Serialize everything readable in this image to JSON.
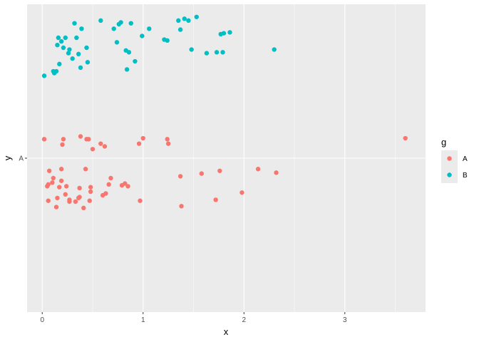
{
  "chart_data": {
    "type": "scatter",
    "xlabel": "x",
    "ylabel": "y",
    "xlim": [
      -0.15,
      3.8
    ],
    "x_ticks": [
      "0",
      "1",
      "2",
      "3"
    ],
    "x_tick_values": [
      0,
      1,
      2,
      3
    ],
    "y_categories": [
      "A"
    ],
    "grid": true,
    "panel_background": "#EBEBEB",
    "grid_color": "#FFFFFF",
    "legend": {
      "title": "g",
      "position": "right"
    },
    "series": [
      {
        "name": "A",
        "color": "#F8766D",
        "points": [
          [
            0.02,
            0.21
          ],
          [
            0.05,
            -0.31
          ],
          [
            0.06,
            -0.29
          ],
          [
            0.06,
            -0.47
          ],
          [
            0.07,
            -0.14
          ],
          [
            0.1,
            -0.27
          ],
          [
            0.11,
            -0.22
          ],
          [
            0.14,
            -0.54
          ],
          [
            0.15,
            -0.44
          ],
          [
            0.17,
            -0.32
          ],
          [
            0.19,
            -0.25
          ],
          [
            0.19,
            -0.12
          ],
          [
            0.2,
            0.15
          ],
          [
            0.21,
            0.21
          ],
          [
            0.23,
            -0.4
          ],
          [
            0.24,
            -0.31
          ],
          [
            0.27,
            -0.46
          ],
          [
            0.27,
            -0.48
          ],
          [
            0.33,
            -0.48
          ],
          [
            0.36,
            -0.44
          ],
          [
            0.37,
            -0.43
          ],
          [
            0.37,
            -0.33
          ],
          [
            0.38,
            0.24
          ],
          [
            0.41,
            -0.55
          ],
          [
            0.43,
            -0.12
          ],
          [
            0.44,
            0.21
          ],
          [
            0.46,
            0.21
          ],
          [
            0.47,
            -0.47
          ],
          [
            0.48,
            -0.32
          ],
          [
            0.48,
            -0.37
          ],
          [
            0.5,
            0.1
          ],
          [
            0.58,
            0.16
          ],
          [
            0.6,
            -0.41
          ],
          [
            0.62,
            0.13
          ],
          [
            0.63,
            -0.39
          ],
          [
            0.66,
            -0.29
          ],
          [
            0.68,
            -0.22
          ],
          [
            0.79,
            -0.3
          ],
          [
            0.82,
            -0.28
          ],
          [
            0.85,
            -0.31
          ],
          [
            0.96,
            0.16
          ],
          [
            0.97,
            -0.47
          ],
          [
            1.0,
            0.22
          ],
          [
            1.24,
            0.21
          ],
          [
            1.25,
            0.16
          ],
          [
            1.37,
            -0.2
          ],
          [
            1.38,
            -0.53
          ],
          [
            1.58,
            -0.17
          ],
          [
            1.72,
            -0.46
          ],
          [
            1.76,
            -0.14
          ],
          [
            1.98,
            -0.38
          ],
          [
            2.14,
            -0.12
          ],
          [
            2.32,
            -0.16
          ],
          [
            3.6,
            0.22
          ]
        ]
      },
      {
        "name": "B",
        "color": "#00BFC4",
        "points": [
          [
            0.02,
            0.91
          ],
          [
            0.11,
            0.96
          ],
          [
            0.12,
            0.94
          ],
          [
            0.14,
            0.96
          ],
          [
            0.15,
            1.25
          ],
          [
            0.16,
            1.33
          ],
          [
            0.17,
            1.04
          ],
          [
            0.19,
            1.29
          ],
          [
            0.21,
            1.22
          ],
          [
            0.23,
            1.33
          ],
          [
            0.26,
            1.16
          ],
          [
            0.27,
            1.2
          ],
          [
            0.3,
            1.1
          ],
          [
            0.32,
            1.49
          ],
          [
            0.34,
            1.33
          ],
          [
            0.36,
            1.15
          ],
          [
            0.38,
            1.0
          ],
          [
            0.39,
            1.43
          ],
          [
            0.44,
            1.22
          ],
          [
            0.45,
            1.06
          ],
          [
            0.58,
            1.52
          ],
          [
            0.71,
            1.43
          ],
          [
            0.74,
            1.28
          ],
          [
            0.76,
            1.48
          ],
          [
            0.78,
            1.5
          ],
          [
            0.83,
            1.19
          ],
          [
            0.84,
            0.98
          ],
          [
            0.86,
            1.17
          ],
          [
            0.88,
            1.49
          ],
          [
            0.92,
            1.07
          ],
          [
            0.99,
            1.35
          ],
          [
            1.06,
            1.43
          ],
          [
            1.21,
            1.31
          ],
          [
            1.24,
            1.3
          ],
          [
            1.35,
            1.52
          ],
          [
            1.37,
            1.42
          ],
          [
            1.41,
            1.54
          ],
          [
            1.45,
            1.52
          ],
          [
            1.48,
            1.2
          ],
          [
            1.53,
            1.56
          ],
          [
            1.63,
            1.16
          ],
          [
            1.73,
            1.17
          ],
          [
            1.77,
            1.37
          ],
          [
            1.79,
            1.17
          ],
          [
            1.8,
            1.38
          ],
          [
            1.86,
            1.39
          ],
          [
            2.3,
            1.2
          ]
        ]
      }
    ]
  }
}
